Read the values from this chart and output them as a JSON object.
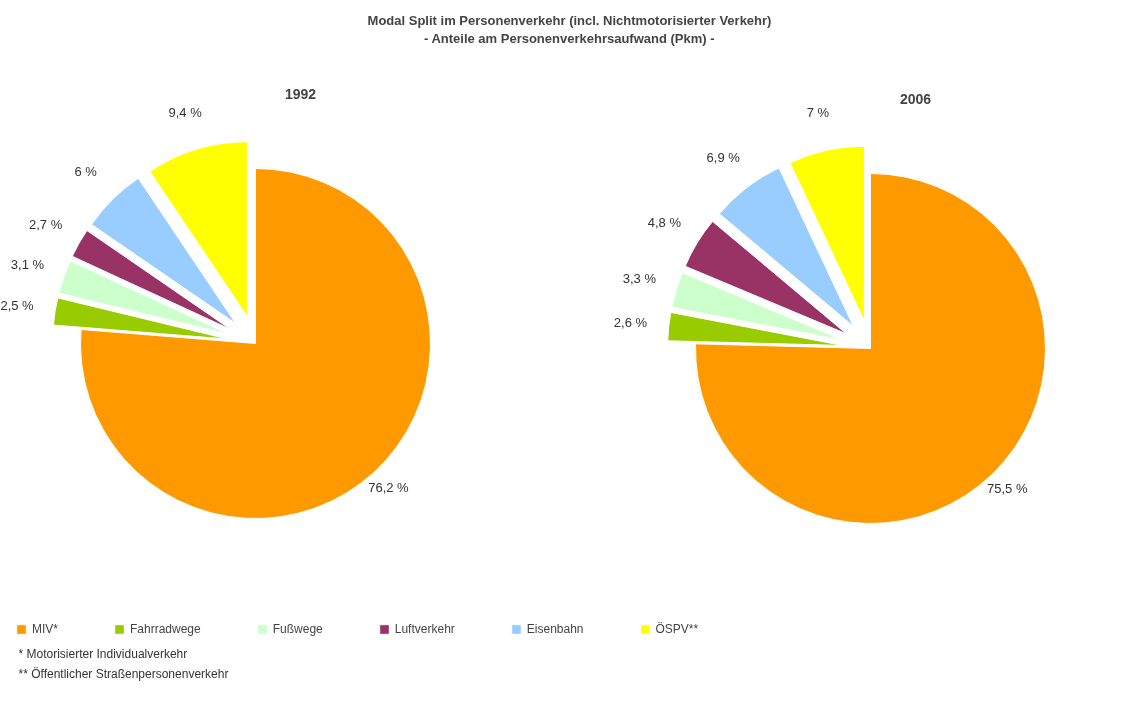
{
  "chart_data": [
    {
      "type": "pie",
      "title": "1992",
      "categories": [
        "MIV*",
        "Fahrradwege",
        "Fußwege",
        "Luftverkehr",
        "Eisenbahn",
        "ÖSPV**"
      ],
      "values": [
        76.2,
        2.5,
        3.1,
        2.7,
        6,
        9.4
      ],
      "value_labels": [
        "76,2 %",
        "2,5 %",
        "3,1 %",
        "2,7 %",
        "6 %",
        "9,4 %"
      ],
      "colors": [
        "#ff9900",
        "#99cc00",
        "#ccffcc",
        "#993366",
        "#99ccff",
        "#ffff00"
      ],
      "legend": "bottom",
      "annotations": [
        "Modal Split im Personenverkehr (incl. Nichtmotorisierter Verkehr)",
        "- Anteile am Personenverkehrsaufwand (Pkm) -",
        "* Motorisierter Individualverkehr",
        "** Öffentlicher Straßenpersonenverkehr"
      ]
    },
    {
      "type": "pie",
      "title": "2006",
      "categories": [
        null,
        null,
        null,
        null,
        null,
        null
      ],
      "values": [
        75.5,
        2.6,
        3.3,
        4.8,
        6.9,
        7
      ],
      "value_labels": [
        "75,5 %",
        "2,6 %",
        "3,3 %",
        "4,8 %",
        "6,9 %",
        "7 %"
      ],
      "colors": [
        "#ff9900",
        "#99cc00",
        "#ccffcc",
        "#993366",
        "#99ccff",
        "#ffff00"
      ]
    }
  ]
}
